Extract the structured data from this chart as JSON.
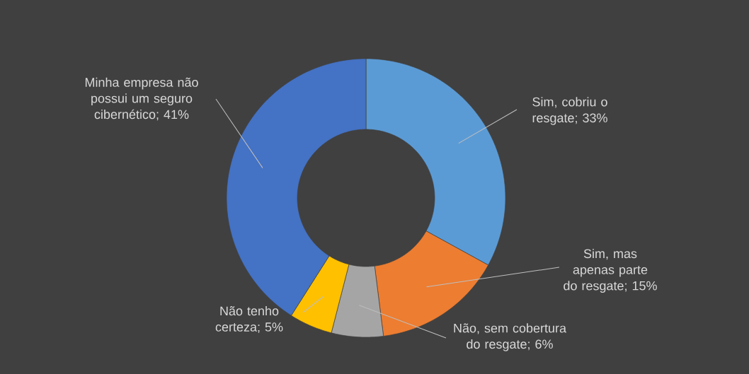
{
  "chart_data": {
    "type": "donut",
    "categories": [
      "Sim, cobriu o resgate; 33%",
      "Sim, mas apenas parte do resgate; 15%",
      "Não, sem cobertura do resgate; 6%",
      "Não tenho certeza; 5%",
      "Minha empresa não possui um seguro cibernético; 41%"
    ],
    "values": [
      33,
      15,
      6,
      5,
      41
    ],
    "colors": [
      "#5b9bd5",
      "#ed7d31",
      "#a5a5a5",
      "#ffc000",
      "#4472c4"
    ]
  }
}
